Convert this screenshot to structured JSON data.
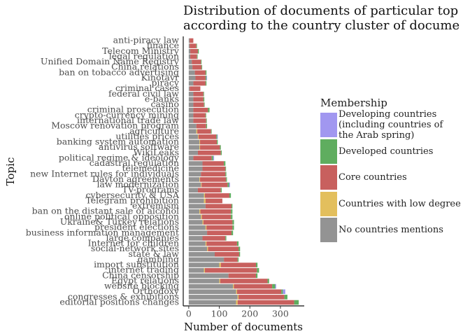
{
  "chart_data": {
    "type": "stacked_barh",
    "title_lines": [
      "Distribution of documents of particular top",
      "according to the country cluster of docume"
    ],
    "x_label": "Number of documents",
    "y_label": "Topic",
    "legend_title": "Membership",
    "categories": [
      "anti-piracy law",
      "finance",
      "Telecom Ministry",
      "legal regulation",
      "Unified Domain Name Registry",
      "China relations",
      "ban on tobacco advertising",
      "Kinotavr",
      "piracy",
      "criminal cases",
      "federal civil law",
      "e-banks",
      "casino",
      "criminal prosecution",
      "crypto-currency mining",
      "international trade law",
      "Moscow renovation program",
      "agriculture",
      "utilities prices",
      "banking system automation",
      "antivirus software",
      "WikiLeaks",
      "political regime & ideology",
      "cadastral regulation",
      "telemedicine",
      "new Internet rules for individuals",
      "Dayton agreements",
      "law modernization",
      "TV-programs",
      "cybersecurity & USA",
      "Telegram prohibition",
      "extremism",
      "ban on the distant sale of alcohol",
      "online political opposition",
      "Ukraine& Turkey relations",
      "president elections",
      "business information management",
      "large companies",
      "Internet for children",
      "social-network sites",
      "state & law",
      "gambling",
      "import substitution",
      "internet trading",
      "China censorship",
      "Egypt relations",
      "website blocking",
      "Orthodoxy",
      "congresses & exhibitions",
      "editorial positions changes"
    ],
    "series": [
      {
        "name": "No countries mentions",
        "color": "#939393",
        "values": [
          3,
          3,
          5,
          5,
          10,
          12,
          20,
          22,
          15,
          3,
          15,
          15,
          15,
          15,
          15,
          15,
          25,
          25,
          30,
          35,
          35,
          30,
          15,
          45,
          45,
          40,
          35,
          40,
          30,
          50,
          50,
          55,
          35,
          40,
          45,
          55,
          60,
          45,
          55,
          60,
          85,
          115,
          100,
          50,
          130,
          100,
          145,
          155,
          160,
          155
        ]
      },
      {
        "name": "Countries with low degree",
        "color": "#e3bf5d",
        "values": [
          0,
          0,
          0,
          0,
          0,
          0,
          0,
          0,
          0,
          0,
          0,
          0,
          0,
          0,
          0,
          0,
          0,
          3,
          2,
          2,
          2,
          0,
          0,
          0,
          0,
          0,
          2,
          2,
          0,
          3,
          5,
          0,
          3,
          3,
          3,
          3,
          0,
          0,
          3,
          3,
          0,
          0,
          5,
          3,
          0,
          3,
          3,
          3,
          3,
          5
        ]
      },
      {
        "name": "Core countries",
        "color": "#c8605e",
        "values": [
          12,
          22,
          25,
          22,
          30,
          30,
          35,
          33,
          40,
          35,
          33,
          33,
          35,
          48,
          40,
          42,
          32,
          45,
          58,
          55,
          65,
          75,
          60,
          70,
          75,
          80,
          85,
          85,
          75,
          80,
          55,
          85,
          100,
          95,
          95,
          85,
          80,
          75,
          100,
          100,
          80,
          45,
          115,
          170,
          90,
          155,
          125,
          145,
          150,
          185
        ]
      },
      {
        "name": "Developed countries",
        "color": "#5fad5f",
        "values": [
          0,
          2,
          3,
          2,
          2,
          2,
          3,
          3,
          3,
          0,
          2,
          3,
          2,
          5,
          2,
          2,
          3,
          2,
          3,
          3,
          3,
          3,
          5,
          5,
          2,
          3,
          3,
          5,
          3,
          5,
          0,
          3,
          5,
          5,
          5,
          5,
          5,
          3,
          5,
          5,
          3,
          3,
          5,
          7,
          5,
          5,
          10,
          5,
          10,
          15
        ]
      },
      {
        "name": "Developing countries (including countries of the Arab spring)",
        "color": "#a197f0",
        "values": [
          0,
          0,
          0,
          0,
          0,
          0,
          0,
          2,
          0,
          0,
          0,
          0,
          0,
          0,
          0,
          0,
          0,
          0,
          2,
          0,
          0,
          0,
          3,
          0,
          0,
          0,
          0,
          3,
          0,
          0,
          0,
          0,
          0,
          0,
          0,
          0,
          0,
          0,
          0,
          0,
          0,
          0,
          0,
          0,
          0,
          0,
          3,
          8,
          0,
          0
        ]
      }
    ],
    "xlim": [
      -18,
      378
    ],
    "xticks": [
      0,
      100,
      200,
      300
    ]
  }
}
